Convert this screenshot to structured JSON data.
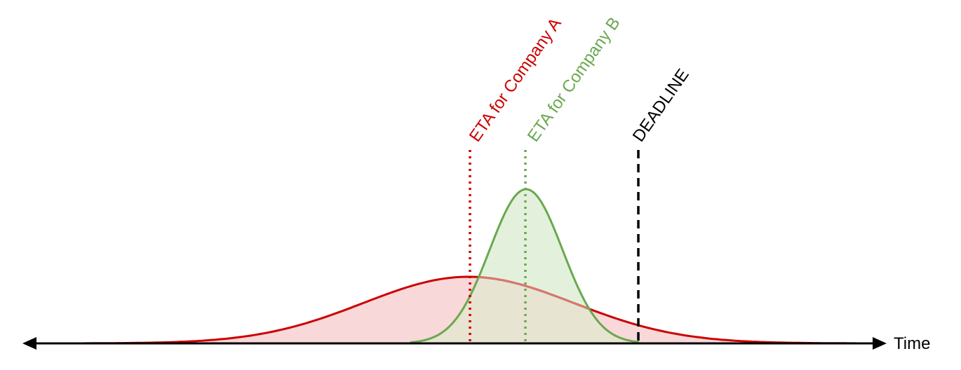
{
  "diagram": {
    "axis_label": "Time",
    "markers": [
      {
        "key": "eta_a",
        "label": "ETA for Company A",
        "color": "#cc0000",
        "style": "dotted"
      },
      {
        "key": "eta_b",
        "label": "ETA for Company B",
        "color": "#6aa84f",
        "style": "dotted"
      },
      {
        "key": "deadline",
        "label": "DEADLINE",
        "color": "#000000",
        "style": "dashed"
      }
    ],
    "distributions": [
      {
        "key": "company_a",
        "stroke": "#cc0000",
        "fill": "#f8d8d8",
        "spread": "wide"
      },
      {
        "key": "company_b",
        "stroke": "#6aa84f",
        "fill": "#e3f1dc",
        "spread": "narrow"
      }
    ],
    "colors": {
      "axis": "#000000",
      "overlap_stroke": "#d6796f",
      "overlap_fill": "#e7e4d2"
    }
  }
}
